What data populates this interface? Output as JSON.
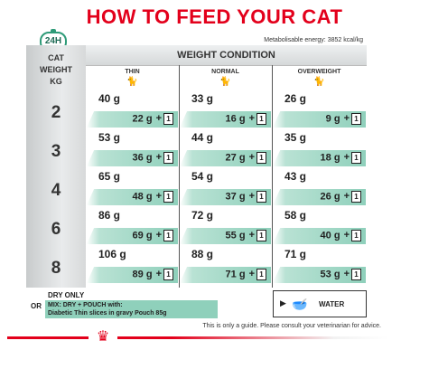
{
  "title": "HOW TO FEED YOUR CAT",
  "badge": "24H",
  "energy": "Metabolisable energy: 3852 kcal/kg",
  "table": {
    "left_header": [
      "CAT",
      "WEIGHT",
      "KG"
    ],
    "weight_condition": "WEIGHT CONDITION",
    "columns": [
      "THIN",
      "NORMAL",
      "OVERWEIGHT"
    ],
    "rows": [
      {
        "kg": "2",
        "thin": {
          "dry": "40 g",
          "mix": "22 g"
        },
        "normal": {
          "dry": "33 g",
          "mix": "16 g"
        },
        "overweight": {
          "dry": "26 g",
          "mix": "9 g"
        }
      },
      {
        "kg": "3",
        "thin": {
          "dry": "53 g",
          "mix": "36 g"
        },
        "normal": {
          "dry": "44 g",
          "mix": "27 g"
        },
        "overweight": {
          "dry": "35 g",
          "mix": "18 g"
        }
      },
      {
        "kg": "4",
        "thin": {
          "dry": "65 g",
          "mix": "48 g"
        },
        "normal": {
          "dry": "54 g",
          "mix": "37 g"
        },
        "overweight": {
          "dry": "43 g",
          "mix": "26 g"
        }
      },
      {
        "kg": "6",
        "thin": {
          "dry": "86 g",
          "mix": "69 g"
        },
        "normal": {
          "dry": "72 g",
          "mix": "55 g"
        },
        "overweight": {
          "dry": "58 g",
          "mix": "40 g"
        }
      },
      {
        "kg": "8",
        "thin": {
          "dry": "106 g",
          "mix": "89 g"
        },
        "normal": {
          "dry": "88 g",
          "mix": "71 g"
        },
        "overweight": {
          "dry": "71 g",
          "mix": "53 g"
        }
      }
    ],
    "plus": "+",
    "pouch_count": "1"
  },
  "legend": {
    "dry_only": "DRY ONLY",
    "or": "OR",
    "mix_line1": "MIX: DRY + POUCH with:",
    "mix_line2": "Diabetic Thin slices in gravy Pouch 85g",
    "water": "WATER"
  },
  "guide": "This is only a guide. Please consult your veterinarian for advice.",
  "icons": [
    "clock-24h-icon",
    "cat-icon",
    "pouch-icon",
    "water-bowl-icon",
    "crown-icon"
  ],
  "colors": {
    "title_red": "#e3001b",
    "mix_green": "#8fd0bb"
  }
}
